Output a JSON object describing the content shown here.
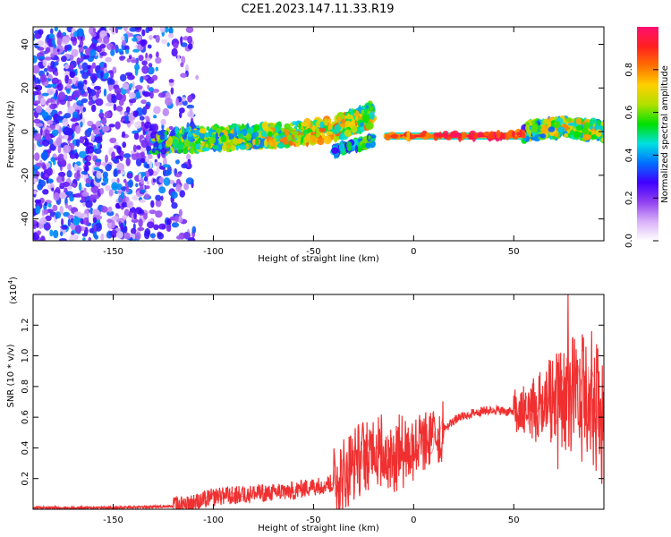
{
  "title": "C2E1.2023.147.11.33.R19",
  "colors": {
    "snr_line": "#f03030",
    "axis": "#000000"
  },
  "chart_data": [
    {
      "type": "heatmap",
      "description_role": "spectrogram",
      "xlabel": "Height of straight line (km)",
      "ylabel": "Frequency (Hz)",
      "xlim": [
        -190,
        95
      ],
      "ylim": [
        -50,
        48
      ],
      "xticks": [
        -150,
        -100,
        -50,
        0,
        50
      ],
      "xtick_labels": [
        "-150",
        "-100",
        "-50",
        "0",
        "50"
      ],
      "yticks": [
        -40,
        -20,
        0,
        20,
        40
      ],
      "ytick_labels": [
        "-40",
        "-20",
        "0",
        "20",
        "40"
      ],
      "colorbar": {
        "label": "Normalized spectral amplitude",
        "range": [
          0,
          1
        ],
        "ticks": [
          0.0,
          0.2,
          0.4,
          0.6,
          0.8
        ],
        "tick_labels": [
          "0.0",
          "0.2",
          "0.4",
          "0.6",
          "0.8"
        ],
        "colormap": [
          "#ffffff",
          "#d8b0f8",
          "#9040f0",
          "#4000ff",
          "#0070ff",
          "#00e0e0",
          "#00e000",
          "#b0e000",
          "#ffd000",
          "#ff7000",
          "#ff2020",
          "#ff1070"
        ]
      },
      "features": {
        "noise_region": {
          "x": [
            -190,
            -108
          ],
          "y": [
            -50,
            48
          ],
          "amplitude": 0.25
        },
        "main_signal": [
          {
            "x": -130,
            "y": -5,
            "amplitude": 0.45
          },
          {
            "x": -100,
            "y": -3,
            "amplitude": 0.55
          },
          {
            "x": -70,
            "y": -2,
            "amplitude": 0.6
          },
          {
            "x": -40,
            "y": 1,
            "amplitude": 0.65
          },
          {
            "x": -20,
            "y": 8,
            "amplitude": 0.6
          }
        ],
        "lower_branch": [
          {
            "x": -40,
            "y": -9,
            "amplitude": 0.35
          },
          {
            "x": -20,
            "y": -4,
            "amplitude": 0.5
          }
        ],
        "strong_band": [
          {
            "x": -15,
            "y": -2,
            "amplitude": 0.8
          },
          {
            "x": 40,
            "y": -2,
            "amplitude": 0.95
          },
          {
            "x": 55,
            "y": -1,
            "amplitude": 0.85
          }
        ],
        "upper_right": [
          {
            "x": 55,
            "y": 0,
            "amplitude": 0.5
          },
          {
            "x": 75,
            "y": 2,
            "amplitude": 0.6
          },
          {
            "x": 95,
            "y": 0,
            "amplitude": 0.55
          }
        ]
      }
    },
    {
      "type": "line",
      "xlabel": "Height of straight line (km)",
      "ylabel": "SNR (10 * v/v)",
      "y_multiplier_label": "(x10",
      "y_multiplier_exp": "4",
      "xlim": [
        -190,
        95
      ],
      "ylim": [
        0,
        1.4
      ],
      "xticks": [
        -150,
        -100,
        -50,
        0,
        50
      ],
      "xtick_labels": [
        "-150",
        "-100",
        "-50",
        "0",
        "50"
      ],
      "yticks": [
        0.2,
        0.4,
        0.6,
        0.8,
        1.0,
        1.2
      ],
      "ytick_labels": [
        "0.2",
        "0.4",
        "0.6",
        "0.8",
        "1.0",
        "1.2"
      ],
      "series": [
        {
          "x": [
            -190,
            -150,
            -120,
            -110,
            -100,
            -80,
            -60,
            -40,
            -30,
            -20,
            -10,
            0,
            10,
            20,
            30,
            40,
            50,
            60,
            70,
            80,
            90,
            95
          ],
          "y": [
            0.01,
            0.01,
            0.02,
            0.04,
            0.08,
            0.1,
            0.12,
            0.17,
            0.3,
            0.4,
            0.35,
            0.42,
            0.45,
            0.58,
            0.63,
            0.65,
            0.63,
            0.66,
            0.7,
            0.75,
            0.7,
            0.6
          ]
        }
      ]
    }
  ]
}
